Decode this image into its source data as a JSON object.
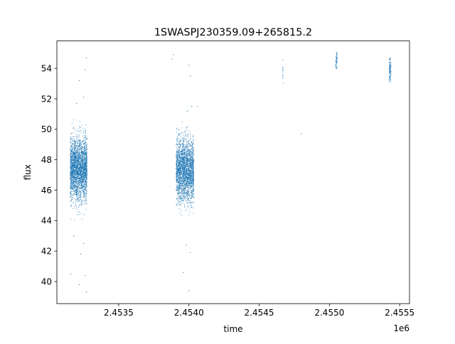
{
  "chart_data": {
    "type": "scatter",
    "title": "1SWASPJ230359.09+265815.2",
    "xlabel": "time",
    "ylabel": "flux",
    "x_offset_label": "1e6",
    "xlim": [
      2.45306,
      2.45557
    ],
    "ylim": [
      38.55,
      55.8
    ],
    "xticks": [
      2.4535,
      2.454,
      2.4545,
      2.455,
      2.4555
    ],
    "xtick_labels": [
      "2.4535",
      "2.4540",
      "2.4545",
      "2.4550",
      "2.4555"
    ],
    "yticks": [
      40,
      42,
      44,
      46,
      48,
      50,
      52,
      54
    ],
    "ytick_labels": [
      "40",
      "42",
      "44",
      "46",
      "48",
      "50",
      "52",
      "54"
    ],
    "grid": false,
    "point_color": "#1f77b4",
    "clusters": [
      {
        "x": [
          2.453155,
          2.453275
        ],
        "y_center": 47.4,
        "y_spread": 1.0,
        "y_min": 44.0,
        "y_max": 50.7,
        "count": 2600
      },
      {
        "x": [
          2.453909,
          2.454035
        ],
        "y_center": 47.3,
        "y_spread": 1.0,
        "y_min": 44.3,
        "y_max": 50.5,
        "count": 2400
      },
      {
        "x": [
          2.454665,
          2.454672
        ],
        "y_center": 53.7,
        "y_spread": 0.6,
        "y_min": 52.8,
        "y_max": 54.6,
        "count": 14
      },
      {
        "x": [
          2.455045,
          2.455055
        ],
        "y_center": 54.5,
        "y_spread": 0.35,
        "y_min": 53.9,
        "y_max": 55.1,
        "count": 55
      },
      {
        "x": [
          2.455425,
          2.455438
        ],
        "y_center": 54.0,
        "y_spread": 0.5,
        "y_min": 52.6,
        "y_max": 54.9,
        "count": 100
      }
    ],
    "outliers": [
      {
        "x": 2.45316,
        "y": 40.5
      },
      {
        "x": 2.45322,
        "y": 39.8
      },
      {
        "x": 2.45327,
        "y": 39.3
      },
      {
        "x": 2.45326,
        "y": 40.4
      },
      {
        "x": 2.45323,
        "y": 41.8
      },
      {
        "x": 2.45318,
        "y": 43.0
      },
      {
        "x": 2.45325,
        "y": 42.5
      },
      {
        "x": 2.45327,
        "y": 54.7
      },
      {
        "x": 2.45326,
        "y": 53.9
      },
      {
        "x": 2.45322,
        "y": 53.2
      },
      {
        "x": 2.45325,
        "y": 52.1
      },
      {
        "x": 2.4532,
        "y": 51.7
      },
      {
        "x": 2.45389,
        "y": 54.9
      },
      {
        "x": 2.45388,
        "y": 54.6
      },
      {
        "x": 2.454,
        "y": 54.2
      },
      {
        "x": 2.45401,
        "y": 53.5
      },
      {
        "x": 2.45399,
        "y": 51.2
      },
      {
        "x": 2.45402,
        "y": 51.5
      },
      {
        "x": 2.454,
        "y": 39.4
      },
      {
        "x": 2.45396,
        "y": 40.6
      },
      {
        "x": 2.45401,
        "y": 41.9
      },
      {
        "x": 2.45398,
        "y": 42.4
      },
      {
        "x": 2.45406,
        "y": 51.5
      },
      {
        "x": 2.4548,
        "y": 49.7
      }
    ]
  }
}
